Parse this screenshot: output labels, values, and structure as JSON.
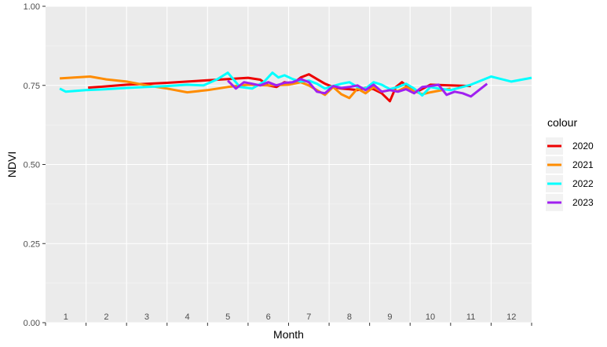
{
  "chart_data": {
    "type": "line",
    "title": "",
    "xlabel": "Month",
    "ylabel": "NDVI",
    "ylim": [
      0,
      1
    ],
    "xlim": [
      0.5,
      12.5
    ],
    "y_ticks": [
      "0.00",
      "0.25",
      "0.50",
      "0.75",
      "1.00"
    ],
    "y_tick_values": [
      0,
      0.25,
      0.5,
      0.75,
      1.0
    ],
    "x_tick_labels": [
      "1",
      "2",
      "3",
      "4",
      "5",
      "6",
      "7",
      "8",
      "9",
      "10",
      "11",
      "12"
    ],
    "x_tick_positions": [
      1,
      2,
      3,
      4,
      5,
      6,
      7,
      8,
      9,
      10,
      11,
      12
    ],
    "grid": true,
    "legend": {
      "title": "colour",
      "position": "right"
    },
    "series": [
      {
        "name": "2020",
        "color": "#EE0000",
        "x": [
          1.55,
          2.0,
          2.5,
          3.0,
          3.5,
          4.0,
          4.5,
          5.0,
          5.5,
          5.8,
          6.0,
          6.2,
          6.4,
          6.6,
          6.8,
          7.0,
          7.2,
          7.4,
          7.6,
          7.8,
          8.0,
          8.2,
          8.4,
          8.6,
          8.8,
          9.0,
          9.15,
          9.3,
          9.5,
          9.7,
          10.0,
          10.5,
          11.0
        ],
        "y": [
          0.743,
          0.747,
          0.752,
          0.755,
          0.758,
          0.762,
          0.766,
          0.77,
          0.774,
          0.768,
          0.75,
          0.745,
          0.76,
          0.755,
          0.775,
          0.785,
          0.77,
          0.755,
          0.745,
          0.74,
          0.738,
          0.735,
          0.742,
          0.738,
          0.725,
          0.7,
          0.745,
          0.76,
          0.74,
          0.732,
          0.752,
          0.75,
          0.748
        ]
      },
      {
        "name": "2021",
        "color": "#FF8C00",
        "x": [
          0.85,
          1.2,
          1.6,
          2.0,
          2.5,
          3.0,
          3.5,
          4.0,
          4.5,
          5.0,
          5.5,
          6.0,
          6.5,
          6.8,
          7.0,
          7.2,
          7.4,
          7.6,
          7.8,
          8.0,
          8.2,
          8.4,
          8.6,
          8.8,
          9.0,
          9.2,
          9.4,
          9.6,
          9.8,
          10.0,
          10.5
        ],
        "y": [
          0.772,
          0.775,
          0.778,
          0.769,
          0.762,
          0.75,
          0.74,
          0.728,
          0.735,
          0.745,
          0.752,
          0.75,
          0.752,
          0.76,
          0.75,
          0.735,
          0.72,
          0.745,
          0.722,
          0.71,
          0.74,
          0.725,
          0.745,
          0.73,
          0.735,
          0.732,
          0.745,
          0.732,
          0.722,
          0.728,
          0.74
        ]
      },
      {
        "name": "2022",
        "color": "#00FFFF",
        "x": [
          0.85,
          1.0,
          1.5,
          2.0,
          2.5,
          3.0,
          3.5,
          4.0,
          4.4,
          4.75,
          5.0,
          5.3,
          5.6,
          5.9,
          6.1,
          6.25,
          6.4,
          6.6,
          6.8,
          7.0,
          7.2,
          7.4,
          7.6,
          7.8,
          8.0,
          8.2,
          8.4,
          8.6,
          8.8,
          9.0,
          9.2,
          9.4,
          9.6,
          9.8,
          10.0,
          10.2,
          10.5,
          11.0,
          11.5,
          12.0,
          12.5
        ],
        "y": [
          0.74,
          0.73,
          0.735,
          0.738,
          0.742,
          0.745,
          0.748,
          0.752,
          0.75,
          0.77,
          0.79,
          0.745,
          0.74,
          0.762,
          0.79,
          0.775,
          0.782,
          0.77,
          0.762,
          0.765,
          0.755,
          0.74,
          0.748,
          0.755,
          0.76,
          0.745,
          0.74,
          0.76,
          0.752,
          0.738,
          0.745,
          0.755,
          0.74,
          0.718,
          0.745,
          0.74,
          0.735,
          0.752,
          0.778,
          0.762,
          0.774
        ]
      },
      {
        "name": "2023",
        "color": "#A020F0",
        "x": [
          5.0,
          5.2,
          5.4,
          5.6,
          5.8,
          6.0,
          6.2,
          6.4,
          6.6,
          6.8,
          7.0,
          7.2,
          7.4,
          7.6,
          7.8,
          8.0,
          8.2,
          8.4,
          8.6,
          8.8,
          9.0,
          9.2,
          9.4,
          9.6,
          9.8,
          10.0,
          10.2,
          10.4,
          10.6,
          10.8,
          11.0,
          11.2,
          11.4
        ],
        "y": [
          0.765,
          0.74,
          0.76,
          0.755,
          0.75,
          0.76,
          0.75,
          0.758,
          0.76,
          0.77,
          0.76,
          0.73,
          0.725,
          0.748,
          0.742,
          0.745,
          0.75,
          0.735,
          0.752,
          0.73,
          0.735,
          0.73,
          0.738,
          0.725,
          0.745,
          0.748,
          0.752,
          0.72,
          0.73,
          0.725,
          0.715,
          0.735,
          0.755
        ]
      }
    ]
  }
}
